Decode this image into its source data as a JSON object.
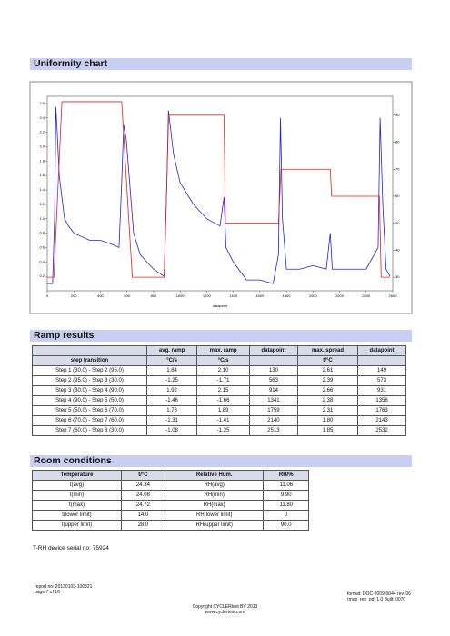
{
  "sections": {
    "chart": "Uniformity chart",
    "ramp": "Ramp results",
    "room": "Room conditions"
  },
  "chart_data": {
    "type": "line",
    "xlabel": "datapoint",
    "xlim": [
      0,
      2600
    ],
    "xticks": [
      0,
      200,
      400,
      600,
      800,
      1000,
      1200,
      1400,
      1600,
      1800,
      2000,
      2200,
      2400,
      2600
    ],
    "ylim": [
      0,
      2.7
    ],
    "yticks": [
      0.2,
      0.4,
      0.6,
      0.8,
      {
        "value": 1,
        "label": "1.0"
      },
      1.2,
      1.4,
      1.6,
      1.8,
      {
        "value": 2,
        "label": "2.0"
      },
      2.2,
      2.4,
      2.6
    ],
    "y2lim": [
      25,
      97
    ],
    "y2ticks": [
      30,
      40,
      50,
      60,
      70,
      80,
      90
    ],
    "series": [
      {
        "color": "#2323d0",
        "x": [
          0,
          40,
          55,
          65,
          75,
          90,
          110,
          130,
          160,
          200,
          260,
          320,
          400,
          480,
          540,
          560,
          575,
          595,
          620,
          650,
          700,
          800,
          880,
          900,
          912,
          925,
          950,
          1000,
          1100,
          1200,
          1300,
          1330,
          1345,
          1400,
          1500,
          1600,
          1700,
          1740,
          1755,
          1770,
          1800,
          1900,
          2000,
          2100,
          2130,
          2145,
          2250,
          2400,
          2490,
          2505,
          2525,
          2550,
          2580
        ],
        "values": [
          0.1,
          0.1,
          1.0,
          2.55,
          2.2,
          1.6,
          1.3,
          1.0,
          0.9,
          0.8,
          0.75,
          0.7,
          0.7,
          0.65,
          0.6,
          1.5,
          2.3,
          2.1,
          1.5,
          0.8,
          0.5,
          0.3,
          0.2,
          1.5,
          2.5,
          2.3,
          1.9,
          1.5,
          1.2,
          1.0,
          0.9,
          1.3,
          0.6,
          0.4,
          0.15,
          0.15,
          0.1,
          0.5,
          2.4,
          1.0,
          0.3,
          0.3,
          0.35,
          0.3,
          0.8,
          0.3,
          0.3,
          0.3,
          0.6,
          2.4,
          1.2,
          0.3,
          0.2
        ]
      },
      {
        "color": "#e02020",
        "axis": "y2",
        "x": [
          0,
          50,
          110,
          560,
          640,
          880,
          914,
          1330,
          1341,
          1740,
          1759,
          2130,
          2140,
          2500,
          2513,
          2580
        ],
        "values": [
          30,
          30,
          95,
          95,
          30,
          30,
          90,
          90,
          50,
          50,
          70,
          70,
          60,
          60,
          30,
          30
        ]
      }
    ]
  },
  "ramp_table": {
    "header": [
      "avg. ramp",
      "max. ramp",
      "datapoint",
      "max. spread",
      "datapoint"
    ],
    "subheader": [
      "step transition",
      "°C/s",
      "°C/s",
      "t/°C"
    ],
    "rows": [
      [
        "Step 1 (30.0) - Step 2 (95.0)",
        "1.84",
        "2.10",
        "130",
        "2.61",
        "149"
      ],
      [
        "Step 2 (95.0) - Step 3 (30.0)",
        "-1.25",
        "-1.71",
        "563",
        "2.39",
        "573"
      ],
      [
        "Step 3 (30.0) - Step 4 (90.0)",
        "1.92",
        "2.15",
        "914",
        "2.66",
        "931"
      ],
      [
        "Step 4 (90.0) - Step 5 (50.0)",
        "-1.46",
        "-1.66",
        "1341",
        "2.38",
        "1356"
      ],
      [
        "Step 5 (50.0) - Step 6 (70.0)",
        "1.78",
        "1.89",
        "1759",
        "2.31",
        "1763"
      ],
      [
        "Step 6 (70.0) - Step 7 (60.0)",
        "-1.31",
        "-1.41",
        "2140",
        "1.80",
        "2143"
      ],
      [
        "Step 7 (60.0) - Step 8 (30.0)",
        "-1.08",
        "-1.25",
        "2513",
        "1.85",
        "2532"
      ]
    ]
  },
  "room_table": {
    "header": [
      "Temperature",
      "t/°C",
      "Relative Hum.",
      "RH/%"
    ],
    "rows": [
      [
        "t(avg)",
        "24.34",
        "RH(avg)",
        "11.06"
      ],
      [
        "t(min)",
        "24.08",
        "RH(min)",
        "9.90"
      ],
      [
        "t(max)",
        "24.72",
        "RH(max)",
        "11.80"
      ],
      [
        "t(lower limit)",
        "14.0",
        "RH(lower limit)",
        "0"
      ],
      [
        "t(upper limit)",
        "28.0",
        "RH(upper limit)",
        "90.0"
      ]
    ]
  },
  "serial": "T-RH device serial no: 75924",
  "footer": {
    "report": "report no: 20130103-100821",
    "page": "page 7 of 16",
    "copyright": "Copyright CYCLERtest BV 2013",
    "site": "www.cyclertest.com",
    "format": "format: DOC-2009-0044 rev. 06",
    "build": "rmas_rep_pdf 1.0 Built: 0070"
  }
}
